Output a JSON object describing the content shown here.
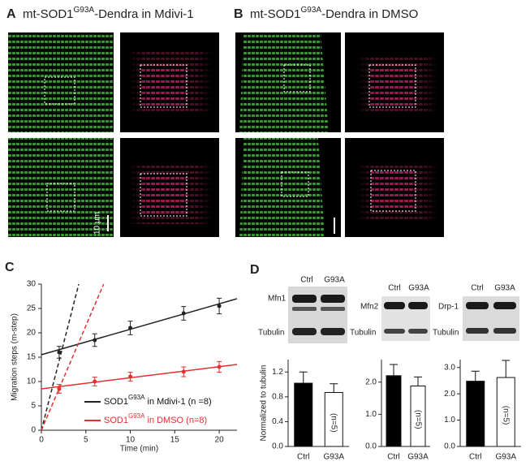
{
  "panels": {
    "A": {
      "label": "A",
      "title": {
        "base": "mt-SOD1",
        "sup": "G93A",
        "rest": "-Dendra in Mdivi-1"
      },
      "scale_bar": "10 μm"
    },
    "B": {
      "label": "B",
      "title": {
        "base": "mt-SOD1",
        "sup": "G93A",
        "rest": "-Dendra in DMSO"
      }
    },
    "C": {
      "label": "C"
    },
    "D": {
      "label": "D",
      "blots": [
        {
          "lanes": [
            "Ctrl",
            "G93A"
          ],
          "rows": [
            "Mfn1",
            "Tubulin"
          ]
        },
        {
          "lanes": [
            "Ctrl",
            "G93A"
          ],
          "rows": [
            "Mfn2",
            "Tubulin"
          ]
        },
        {
          "lanes": [
            "Ctrl",
            "G93A"
          ],
          "rows": [
            "Drp-1",
            "Tubulin"
          ]
        }
      ]
    }
  },
  "chart_data": [
    {
      "type": "line",
      "xlabel": "Time (min)",
      "ylabel": "Migration steps (m-step)",
      "xlim": [
        0,
        22
      ],
      "ylim": [
        0,
        30
      ],
      "xticks": [
        0,
        5,
        10,
        15,
        20
      ],
      "yticks": [
        0,
        5,
        10,
        15,
        20,
        25,
        30
      ],
      "series": [
        {
          "name": {
            "base": "SOD1",
            "sup": "G93A",
            "rest": " in Mdivi-1 (n =8)"
          },
          "color": "#222222",
          "x": [
            2,
            6,
            10,
            16,
            20
          ],
          "values": [
            16,
            18.5,
            21,
            24,
            25.5
          ],
          "errors": [
            1.2,
            1.3,
            1.4,
            1.4,
            1.6
          ],
          "fit": {
            "x": [
              0,
              22
            ],
            "values": [
              15.5,
              27
            ]
          },
          "initial": {
            "x": [
              0,
              4.2
            ],
            "values": [
              0,
              30
            ]
          }
        },
        {
          "name": {
            "base": "SOD1",
            "sup": "G93A",
            "rest": " in DMSO (n=8)"
          },
          "color": "#e03030",
          "x": [
            2,
            6,
            10,
            16,
            20
          ],
          "values": [
            8.5,
            10,
            11,
            12,
            13
          ],
          "errors": [
            0.9,
            0.9,
            0.9,
            1,
            1.1
          ],
          "fit": {
            "x": [
              0,
              22
            ],
            "values": [
              8.5,
              13.5
            ]
          },
          "initial": {
            "x": [
              0,
              7
            ],
            "values": [
              0,
              30
            ]
          }
        }
      ]
    },
    {
      "type": "bar",
      "ylabel": "Normalized to tubulin",
      "categories": [
        "Ctrl",
        "G93A"
      ],
      "values": [
        1.02,
        0.87
      ],
      "errors": [
        0.18,
        0.14
      ],
      "colors": [
        "#000000",
        "#ffffff"
      ],
      "bar_label": "(n=5)",
      "ylim": [
        0,
        1.4
      ],
      "yticks": [
        {
          "value": 0,
          "label": "0.0"
        },
        {
          "value": 0.4,
          "label": "0.4"
        },
        {
          "value": 0.8,
          "label": "0.8"
        },
        {
          "value": 1.2,
          "label": "1.2"
        }
      ]
    },
    {
      "type": "bar",
      "categories": [
        "Ctrl",
        "G93A"
      ],
      "values": [
        2.2,
        1.88
      ],
      "errors": [
        0.35,
        0.28
      ],
      "colors": [
        "#000000",
        "#ffffff"
      ],
      "bar_label": "(n=5)",
      "ylim": [
        0,
        2.7
      ],
      "yticks": [
        {
          "value": 0,
          "label": "0.0"
        },
        {
          "value": 1,
          "label": "1.0"
        },
        {
          "value": 2,
          "label": "2.0"
        }
      ]
    },
    {
      "type": "bar",
      "categories": [
        "Ctrl",
        "G93A"
      ],
      "values": [
        2.48,
        2.62
      ],
      "errors": [
        0.38,
        0.65
      ],
      "colors": [
        "#000000",
        "#ffffff"
      ],
      "bar_label": "(n=5)",
      "ylim": [
        0,
        3.3
      ],
      "yticks": [
        {
          "value": 0,
          "label": "0.0"
        },
        {
          "value": 1,
          "label": "1.0"
        },
        {
          "value": 2,
          "label": "2.0"
        },
        {
          "value": 3,
          "label": "3.0"
        }
      ]
    }
  ]
}
